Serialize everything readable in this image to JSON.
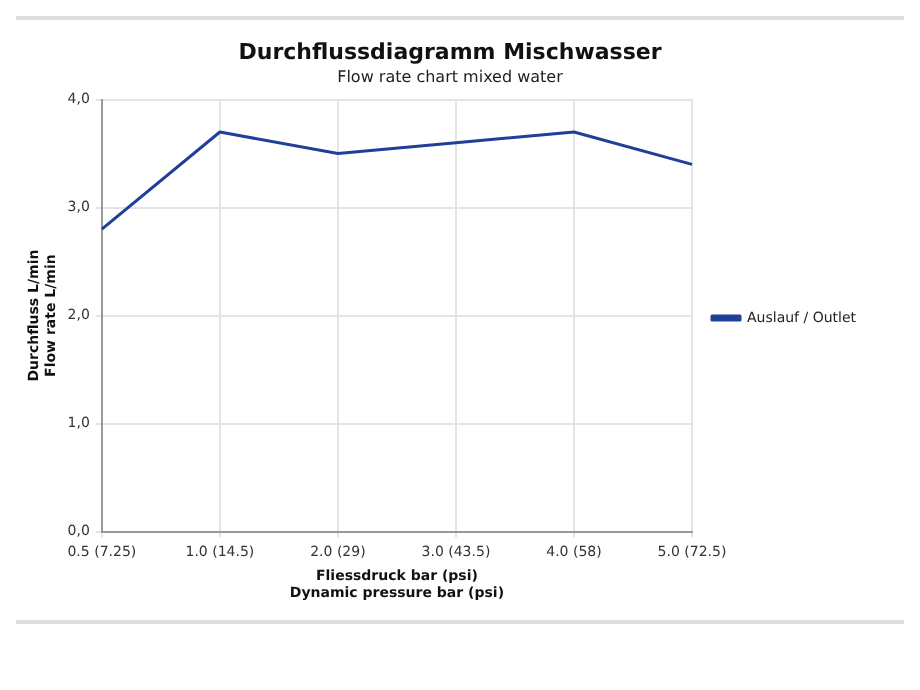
{
  "chart_data": {
    "type": "line",
    "title": "Durchflussdiagramm Mischwasser",
    "subtitle": "Flow rate chart mixed water",
    "xlabel": "Fliessdruck bar (psi)\nDynamic pressure bar (psi)",
    "ylabel": "Durchfluss L/min\nFlow rate L/min",
    "categories": [
      "0.5 (7.25)",
      "1.0 (14.5)",
      "2.0 (29)",
      "3.0 (43.5)",
      "4.0 (58)",
      "5.0 (72.5)"
    ],
    "series": [
      {
        "name": "Auslauf / Outlet",
        "color": "#1f3f99",
        "values": [
          2.8,
          3.7,
          3.5,
          3.6,
          3.7,
          3.4
        ]
      }
    ],
    "ylim": [
      0,
      4
    ],
    "yticks": [
      {
        "value": 0,
        "label": "0,0"
      },
      {
        "value": 1,
        "label": "1,0"
      },
      {
        "value": 2,
        "label": "2,0"
      },
      {
        "value": 3,
        "label": "3,0"
      },
      {
        "value": 4,
        "label": "4,0"
      }
    ],
    "grid": true,
    "legend": "right",
    "marker": "none",
    "line_style": "solid"
  }
}
